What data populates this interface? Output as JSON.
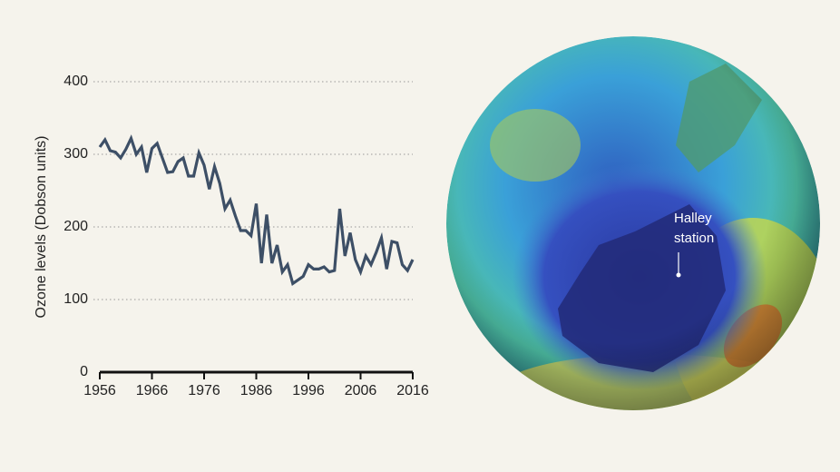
{
  "chart_data": {
    "type": "line",
    "y_label": "Ozone levels (Dobson units)",
    "x": [
      1956,
      1957,
      1958,
      1959,
      1960,
      1961,
      1962,
      1963,
      1964,
      1965,
      1966,
      1967,
      1968,
      1969,
      1970,
      1971,
      1972,
      1973,
      1974,
      1975,
      1976,
      1977,
      1978,
      1979,
      1980,
      1981,
      1982,
      1983,
      1984,
      1985,
      1986,
      1987,
      1988,
      1989,
      1990,
      1991,
      1992,
      1993,
      1994,
      1995,
      1996,
      1997,
      1998,
      1999,
      2000,
      2001,
      2002,
      2003,
      2004,
      2005,
      2006,
      2007,
      2008,
      2009,
      2010,
      2011,
      2012,
      2013,
      2014,
      2015,
      2016
    ],
    "values": [
      310,
      320,
      305,
      303,
      295,
      307,
      322,
      300,
      310,
      275,
      308,
      315,
      295,
      275,
      276,
      290,
      295,
      270,
      270,
      302,
      285,
      252,
      283,
      260,
      225,
      237,
      215,
      195,
      195,
      188,
      232,
      150,
      217,
      150,
      175,
      138,
      148,
      122,
      127,
      132,
      148,
      142,
      142,
      145,
      138,
      140,
      225,
      160,
      192,
      155,
      138,
      160,
      148,
      165,
      185,
      142,
      180,
      178,
      148,
      140,
      155
    ],
    "color": "#3d4f66",
    "xlim": [
      1956,
      2016
    ],
    "xticks": [
      1956,
      1966,
      1976,
      1986,
      1996,
      2006,
      2016
    ],
    "ylim": [
      0,
      400
    ],
    "yticks": [
      0,
      100,
      200,
      300,
      400
    ],
    "grid": true
  },
  "globe": {
    "label_lines": [
      "Halley",
      "station"
    ]
  }
}
